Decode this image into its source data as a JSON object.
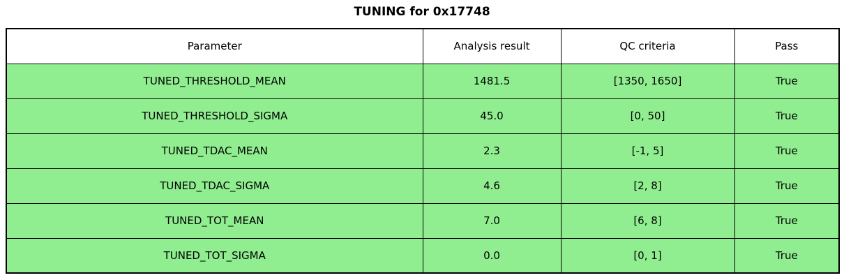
{
  "title": "TUNING for 0x17748",
  "colors": {
    "row_pass_green": "#90EE90",
    "header_bg": "#FFFFFF",
    "border": "#000000"
  },
  "table": {
    "headers": [
      "Parameter",
      "Analysis result",
      "QC criteria",
      "Pass"
    ],
    "rows": [
      {
        "parameter": "TUNED_THRESHOLD_MEAN",
        "analysis_result": "1481.5",
        "qc_criteria": "[1350, 1650]",
        "pass": "True"
      },
      {
        "parameter": "TUNED_THRESHOLD_SIGMA",
        "analysis_result": "45.0",
        "qc_criteria": "[0, 50]",
        "pass": "True"
      },
      {
        "parameter": "TUNED_TDAC_MEAN",
        "analysis_result": "2.3",
        "qc_criteria": "[-1, 5]",
        "pass": "True"
      },
      {
        "parameter": "TUNED_TDAC_SIGMA",
        "analysis_result": "4.6",
        "qc_criteria": "[2, 8]",
        "pass": "True"
      },
      {
        "parameter": "TUNED_TOT_MEAN",
        "analysis_result": "7.0",
        "qc_criteria": "[6, 8]",
        "pass": "True"
      },
      {
        "parameter": "TUNED_TOT_SIGMA",
        "analysis_result": "0.0",
        "qc_criteria": "[0, 1]",
        "pass": "True"
      }
    ]
  },
  "chart_data": {
    "type": "table",
    "title": "TUNING for 0x17748",
    "columns": [
      "Parameter",
      "Analysis result",
      "QC criteria",
      "Pass"
    ],
    "rows": [
      [
        "TUNED_THRESHOLD_MEAN",
        1481.5,
        "[1350, 1650]",
        "True"
      ],
      [
        "TUNED_THRESHOLD_SIGMA",
        45.0,
        "[0, 50]",
        "True"
      ],
      [
        "TUNED_TDAC_MEAN",
        2.3,
        "[-1, 5]",
        "True"
      ],
      [
        "TUNED_TDAC_SIGMA",
        4.6,
        "[2, 8]",
        "True"
      ],
      [
        "TUNED_TOT_MEAN",
        7.0,
        "[6, 8]",
        "True"
      ],
      [
        "TUNED_TOT_SIGMA",
        0.0,
        "[0, 1]",
        "True"
      ]
    ],
    "layout_hints": {
      "header_background": "#FFFFFF",
      "row_background": "#90EE90",
      "grid": true,
      "title_position": "top-center"
    }
  }
}
